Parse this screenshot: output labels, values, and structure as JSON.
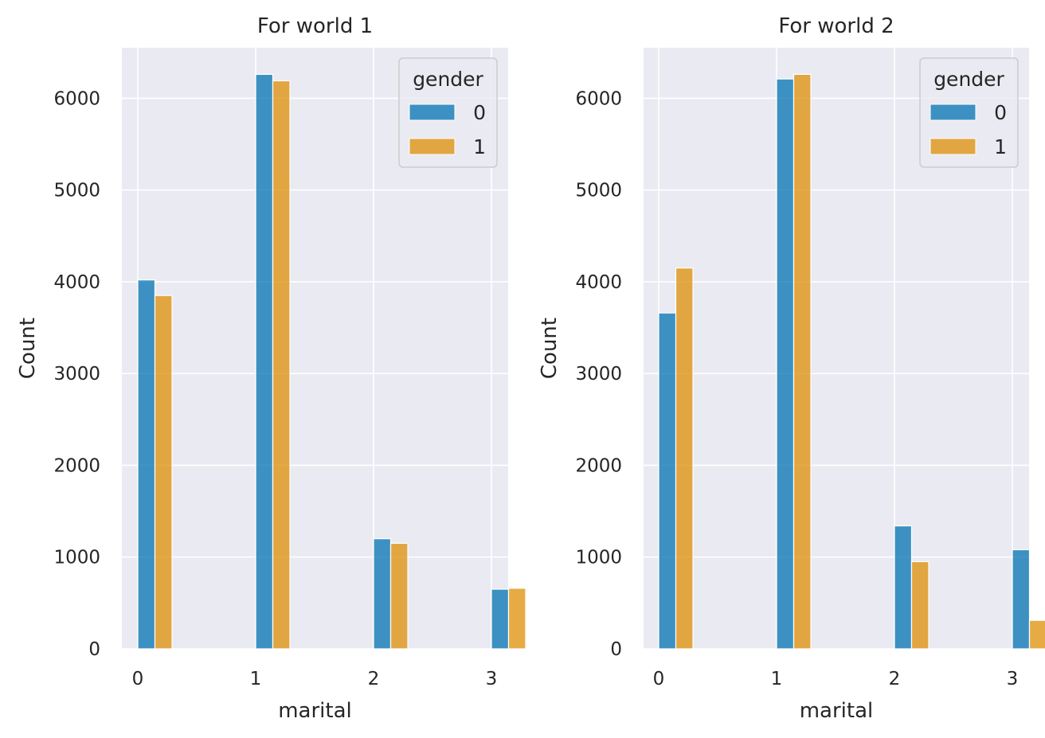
{
  "chart_data": [
    {
      "type": "bar",
      "title": "For world 1",
      "xlabel": "marital",
      "ylabel": "Count",
      "categories": [
        "0",
        "1",
        "2",
        "3"
      ],
      "xticks": [
        "0",
        "1",
        "2",
        "3"
      ],
      "yticks": [
        "0",
        "1000",
        "2000",
        "3000",
        "4000",
        "5000",
        "6000"
      ],
      "ylim": [
        0,
        6550
      ],
      "grid": true,
      "legend": {
        "title": "gender",
        "placement": "top-right",
        "entries": [
          "0",
          "1"
        ]
      },
      "series": [
        {
          "name": "0",
          "color": "#0173b2",
          "values": [
            4020,
            6260,
            1200,
            650
          ]
        },
        {
          "name": "1",
          "color": "#de8f05",
          "values": [
            3850,
            6190,
            1150,
            660
          ]
        }
      ]
    },
    {
      "type": "bar",
      "title": "For world 2",
      "xlabel": "marital",
      "ylabel": "Count",
      "categories": [
        "0",
        "1",
        "2",
        "3"
      ],
      "xticks": [
        "0",
        "1",
        "2",
        "3"
      ],
      "yticks": [
        "0",
        "1000",
        "2000",
        "3000",
        "4000",
        "5000",
        "6000"
      ],
      "ylim": [
        0,
        6550
      ],
      "grid": true,
      "legend": {
        "title": "gender",
        "placement": "top-right",
        "entries": [
          "0",
          "1"
        ]
      },
      "series": [
        {
          "name": "0",
          "color": "#0173b2",
          "values": [
            3660,
            6210,
            1340,
            1080
          ]
        },
        {
          "name": "1",
          "color": "#de8f05",
          "values": [
            4150,
            6260,
            950,
            310
          ]
        }
      ]
    }
  ],
  "colors": {
    "plot_background": "#eaeaf2",
    "grid": "#ffffff",
    "text": "#262626"
  }
}
